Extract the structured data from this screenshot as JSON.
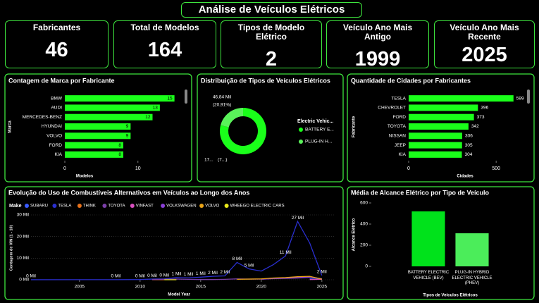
{
  "title": "Análise de Veículos Elétricos",
  "cards": [
    {
      "label": "Fabricantes",
      "value": 46
    },
    {
      "label": "Total de Modelos",
      "value": 164
    },
    {
      "label": "Tipos de Modelo Elétrico",
      "value": 2
    },
    {
      "label": "Veículo Ano Mais Antigo",
      "value": 1999
    },
    {
      "label": "Veículo Ano Mais Recente",
      "value": 2025
    }
  ],
  "chart_data": [
    {
      "type": "hbar",
      "title": "Contagem de Marca por Fabricante",
      "categories": [
        "BMW",
        "AUDI",
        "MERCEDES-BENZ",
        "HYUNDAI",
        "VOLVO",
        "FORD",
        "KIA"
      ],
      "values": [
        15,
        13,
        12,
        9,
        9,
        8,
        8
      ],
      "color": "#1aff1a",
      "xlabel": "Modelos",
      "ylabel": "Marca",
      "xlim": [
        0,
        16
      ],
      "xticks": [
        0,
        10
      ],
      "value_label_position": "inside"
    },
    {
      "type": "donut",
      "title": "Distribuição de Tipos de Veículos Elétricos",
      "legend_title": "Electric Vehic...",
      "categories": [
        "BATTERY E...",
        "PLUG-IN H..."
      ],
      "values": [
        177.16,
        46.84
      ],
      "value_labels": [
        "17...",
        "46,84 Mil"
      ],
      "percentages": [
        79.09,
        20.91
      ],
      "percentage_labels": [
        "(7...)",
        "(20,91%)"
      ],
      "colors": [
        "#1aff1a",
        "#5af25a"
      ]
    },
    {
      "type": "hbar",
      "title": "Quantidade de Cidades por Fabricantes",
      "categories": [
        "TESLA",
        "CHEVROLET",
        "FORD",
        "TOYOTA",
        "NISSAN",
        "JEEP",
        "KIA"
      ],
      "values": [
        599,
        396,
        373,
        342,
        306,
        305,
        304
      ],
      "color": "#1aff1a",
      "xlabel": "Cidades",
      "ylabel": "Fabricante",
      "xlim": [
        0,
        620
      ],
      "xticks": [
        0,
        500
      ],
      "value_label_position": "outside"
    },
    {
      "type": "line",
      "title": "Evolução do Uso de Combustíveis Alternativos em Veículos ao Longo dos Anos",
      "legend_title": "Make",
      "xlabel": "Model Year",
      "ylabel": "Contagem de VIN (1 - 10)",
      "x": [
        2001,
        2008,
        2010,
        2011,
        2012,
        2013,
        2014,
        2015,
        2016,
        2017,
        2018,
        2019,
        2020,
        2021,
        2022,
        2023,
        2024,
        2025
      ],
      "xlim": [
        2001,
        2026
      ],
      "xticks": [
        2005,
        2010,
        2015,
        2020,
        2025
      ],
      "ylim": [
        0,
        30
      ],
      "yticks": [
        {
          "value": 0,
          "label": "0 Mil"
        },
        {
          "value": 10,
          "label": "10 Mil"
        },
        {
          "value": 20,
          "label": "20 Mil"
        },
        {
          "value": 30,
          "label": "30 Mil"
        }
      ],
      "grid": true,
      "series": [
        {
          "name": "SUBARU",
          "color": "#3a5bff",
          "values": [
            null,
            null,
            null,
            null,
            null,
            null,
            null,
            null,
            null,
            null,
            null,
            null,
            null,
            null,
            null,
            null,
            0.4,
            0.2
          ]
        },
        {
          "name": "TESLA",
          "color": "#2a2fd0",
          "values": [
            0.02,
            0.05,
            0.1,
            0.3,
            0.4,
            1.0,
            0.9,
            1.2,
            1.6,
            1.8,
            8,
            5,
            4,
            7,
            11,
            27,
            17,
            2
          ],
          "value_labels": [
            "0 Mil",
            "0 Mil",
            "0 Mil",
            "0 Mil",
            "0 Mil",
            "1 Mil",
            "1 Mil",
            "1 Mil",
            "2 Mil",
            "2 Mil",
            "8 Mil",
            "5 Mil",
            null,
            null,
            "11 Mil",
            "27 Mil",
            null,
            "2 Mil"
          ]
        },
        {
          "name": "THINK",
          "color": "#e8711a",
          "values": [
            null,
            null,
            null,
            0.02,
            0.01,
            null,
            null,
            null,
            null,
            null,
            null,
            null,
            null,
            null,
            null,
            null,
            null,
            null
          ]
        },
        {
          "name": "TOYOTA",
          "color": "#7b3fa8",
          "values": [
            null,
            null,
            null,
            0.1,
            0.2,
            0.3,
            0.2,
            0.1,
            0.1,
            0.2,
            0.4,
            0.3,
            0.3,
            0.5,
            0.6,
            0.8,
            1.1,
            0.4
          ]
        },
        {
          "name": "VINFAST",
          "color": "#d94fbf",
          "values": [
            null,
            null,
            null,
            null,
            null,
            null,
            null,
            null,
            null,
            null,
            null,
            null,
            null,
            null,
            null,
            null,
            0.1,
            0.2
          ]
        },
        {
          "name": "VOLKSWAGEN",
          "color": "#8a3fd6",
          "values": [
            null,
            null,
            null,
            null,
            null,
            null,
            null,
            null,
            null,
            null,
            null,
            null,
            0.2,
            0.6,
            0.8,
            1.0,
            1.3,
            0.5
          ]
        },
        {
          "name": "VOLVO",
          "color": "#e8a317",
          "values": [
            null,
            null,
            null,
            null,
            null,
            null,
            null,
            null,
            null,
            null,
            0.2,
            0.3,
            0.4,
            0.8,
            1.0,
            1.4,
            1.6,
            0.3
          ]
        },
        {
          "name": "WHEEGO ELECTRIC CARS",
          "color": "#e8e81a",
          "values": [
            null,
            null,
            null,
            null,
            0.01,
            0.01,
            null,
            null,
            null,
            null,
            null,
            null,
            null,
            null,
            null,
            null,
            null,
            null
          ]
        }
      ]
    },
    {
      "type": "bar",
      "title": "Média de Alcance Elétrico por Tipo de Veículo",
      "categories": [
        "BATTERY ELECTRIC VEHICLE (BEV)",
        "PLUG-IN HYBRID ELECTRIC VEHICLE (PHEV)"
      ],
      "values": [
        520,
        313
      ],
      "colors": [
        "#00e21b",
        "#4bed5a"
      ],
      "xlabel": "Tipos de Veículos Elétricos",
      "ylabel": "Alcance Elétrico",
      "ylim": [
        0,
        640
      ],
      "yticks": [
        0,
        200,
        400,
        600
      ]
    }
  ]
}
